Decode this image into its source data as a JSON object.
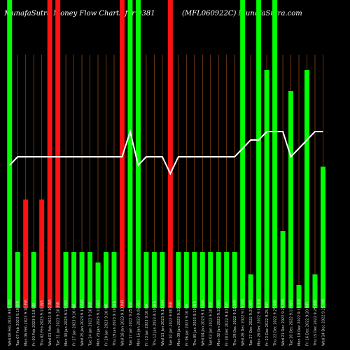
{
  "title_left": "MunafaSutra Money Flow  Charts for 9381",
  "title_right": "(MFL060922C) MunafaSutra.com",
  "chart_data": {
    "type": "bar",
    "colors": {
      "up": "#00ff00",
      "down": "#ff1111",
      "line": "#ffffff",
      "grid": "#8b4513"
    },
    "ylim": [
      0,
      440
    ],
    "categories": [
      "Wed 08 Feb 2023 9.05 INR",
      "Tue 07 Feb 2023 9.10 INR",
      "Mon 06 Feb 2023 9.10 INR",
      "Fri 03 Feb 2023 9.10 INR",
      "Thu 02 Feb 2023 9.10 INR",
      "Wed 01 Feb 2023 9.10 INR",
      "Tue 31 Jan 2023 9.10 INR",
      "Mon 30 Jan 2023 9.10 INR",
      "Fri 27 Jan 2023 9.10 INR",
      "Wed 25 Jan 2023 9.10 INR",
      "Tue 24 Jan 2023 9.10 INR",
      "Mon 23 Jan 2023 9.10 INR",
      "Fri 20 Jan 2023 9.10 INR",
      "Thu 19 Jan 2023 9.10 INR",
      "Wed 18 Jan 2023 9.10 INR",
      "Tue 17 Jan 2023 9.25 INR",
      "Mon 16 Jan 2023 9.05 INR",
      "Fri 13 Jan 2023 9.10 INR",
      "Thu 12 Jan 2023 9.10 INR",
      "Wed 11 Jan 2023 9.10 INR",
      "Tue 10 Jan 2023 9.00 INR",
      "Mon 09 Jan 2023 9.10 INR",
      "Fri 06 Jan 2023 9.10 INR",
      "Thu 05 Jan 2023 9.10 INR",
      "Wed 04 Jan 2023 9.10 INR",
      "Tue 03 Jan 2023 9.10 INR",
      "Mon 02 Jan 2023 9.10 INR",
      "Fri 30 Dec 2022 9.10 INR",
      "Thu 29 Dec 2022 9.10 INR",
      "Wed 28 Dec 2022 9.15 INR",
      "Tue 27 Dec 2022 9.20 INR",
      "Mon 26 Dec 2022 9.20 INR",
      "Fri 23 Dec 2022 9.25 INR",
      "Thu 22 Dec 2022 9.25 INR",
      "Wed 21 Dec 2022 9.25 INR",
      "Tue 20 Dec 2022 9.10 INR",
      "Mon 19 Dec 2022 9.15 INR",
      "Fri 16 Dec 2022 9.20 INR",
      "Thu 15 Dec 2022 9.25 INR",
      "Wed 14 Dec 2022 9.25 INR"
    ],
    "values": [
      440,
      80,
      155,
      80,
      155,
      440,
      440,
      80,
      80,
      80,
      80,
      65,
      80,
      80,
      440,
      440,
      440,
      80,
      80,
      80,
      440,
      80,
      80,
      80,
      80,
      80,
      80,
      80,
      80,
      440,
      48,
      440,
      340,
      440,
      110,
      310,
      33,
      340,
      48,
      202
    ],
    "direction": [
      "up",
      "up",
      "down",
      "up",
      "down",
      "down",
      "down",
      "up",
      "up",
      "up",
      "up",
      "up",
      "up",
      "up",
      "down",
      "up",
      "up",
      "up",
      "up",
      "up",
      "down",
      "up",
      "up",
      "up",
      "up",
      "up",
      "up",
      "up",
      "up",
      "up",
      "up",
      "up",
      "up",
      "up",
      "up",
      "up",
      "up",
      "up",
      "up",
      "up"
    ],
    "line_values": [
      9.05,
      9.1,
      9.1,
      9.1,
      9.1,
      9.1,
      9.1,
      9.1,
      9.1,
      9.1,
      9.1,
      9.1,
      9.1,
      9.1,
      9.1,
      9.25,
      9.05,
      9.1,
      9.1,
      9.1,
      9.0,
      9.1,
      9.1,
      9.1,
      9.1,
      9.1,
      9.1,
      9.1,
      9.1,
      9.15,
      9.2,
      9.2,
      9.25,
      9.25,
      9.25,
      9.1,
      9.15,
      9.2,
      9.25,
      9.25
    ],
    "line_ylim": [
      8.2,
      9.7
    ]
  }
}
